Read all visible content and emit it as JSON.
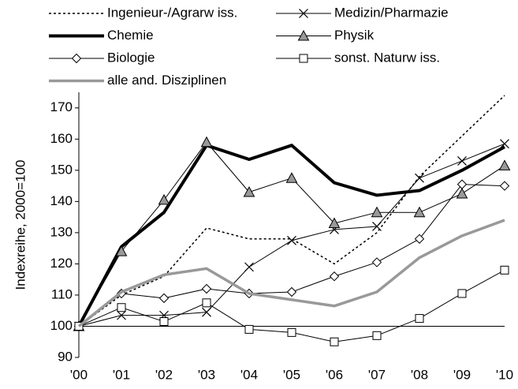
{
  "chart_data": {
    "type": "line",
    "y_label": "Indexreihe, 2000=100",
    "categories": [
      "'00",
      "'01",
      "'02",
      "'03",
      "'04",
      "'05",
      "'06",
      "'07",
      "'08",
      "'09",
      "'10"
    ],
    "ylim": [
      90,
      175
    ],
    "yticks": [
      90,
      100,
      110,
      120,
      130,
      140,
      150,
      160,
      170
    ],
    "reference_line": 100,
    "series": [
      {
        "name": "Ingenieur-/Agrarw iss.",
        "color": "#000000",
        "width": 1.5,
        "dash": "3,3",
        "marker": "none",
        "values": [
          100,
          110,
          116,
          131.5,
          128,
          128,
          120,
          130,
          148,
          161,
          174
        ]
      },
      {
        "name": "Medizin/Pharmazie",
        "color": "#000000",
        "width": 1,
        "dash": "none",
        "marker": "x",
        "values": [
          100,
          103.5,
          103.5,
          104.5,
          119,
          127.5,
          131,
          132,
          147.5,
          153,
          158.5
        ]
      },
      {
        "name": "Chemie",
        "color": "#000000",
        "width": 4,
        "dash": "none",
        "marker": "none",
        "values": [
          100,
          125.5,
          136.5,
          158,
          153.5,
          158,
          146,
          142,
          143.5,
          150,
          157.5
        ]
      },
      {
        "name": "Physik",
        "color": "#000000",
        "width": 1,
        "dash": "none",
        "marker": "triangle",
        "values": [
          100,
          124,
          140.5,
          159,
          143,
          147.5,
          133,
          136.5,
          136.5,
          142.5,
          151.5
        ]
      },
      {
        "name": "Biologie",
        "color": "#000000",
        "width": 1,
        "dash": "none",
        "marker": "diamond",
        "values": [
          100,
          110.5,
          109,
          112,
          110.5,
          111,
          116,
          120.5,
          128,
          145.5,
          145
        ]
      },
      {
        "name": "sonst. Naturw iss.",
        "color": "#000000",
        "width": 1,
        "dash": "none",
        "marker": "square",
        "values": [
          100,
          106,
          101.5,
          107.5,
          99,
          98,
          95,
          97,
          102.5,
          110.5,
          118
        ]
      },
      {
        "name": "alle and. Disziplinen",
        "color": "#999999",
        "width": 3.5,
        "dash": "none",
        "marker": "none",
        "values": [
          100,
          111,
          116.5,
          118.5,
          110.5,
          108.5,
          106.5,
          111,
          122,
          129,
          134
        ]
      }
    ]
  }
}
